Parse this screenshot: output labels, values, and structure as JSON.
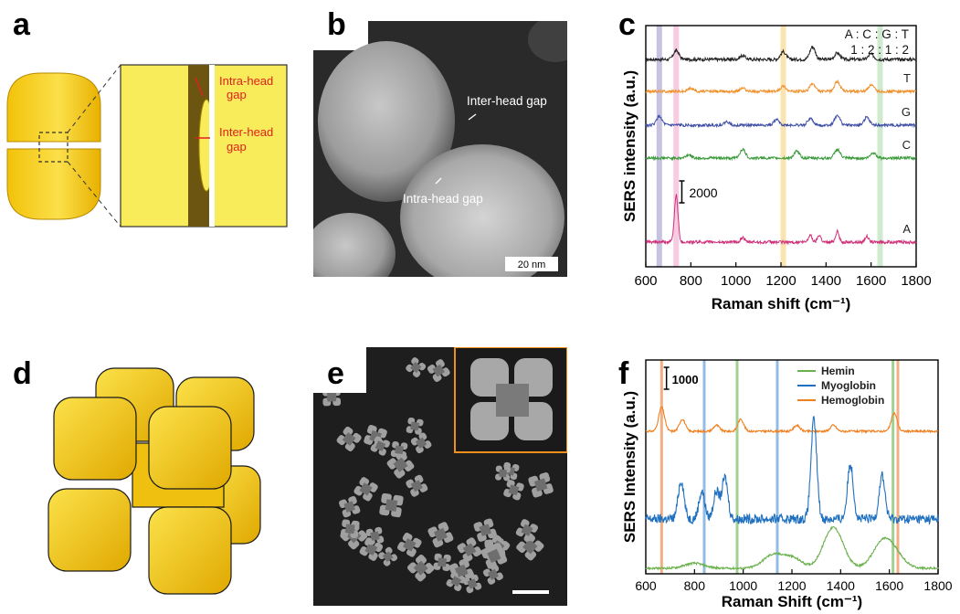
{
  "panels": {
    "a": {
      "letter": "a",
      "labels": {
        "intra": [
          "Intra-head",
          "gap"
        ],
        "inter": [
          "Inter-head",
          "gap"
        ]
      }
    },
    "b": {
      "letter": "b",
      "labels": {
        "inter": "Inter-head gap",
        "intra": "Intra-head gap",
        "scale": "20 nm"
      }
    },
    "c": {
      "letter": "c"
    },
    "d": {
      "letter": "d"
    },
    "e": {
      "letter": "e"
    },
    "f": {
      "letter": "f"
    }
  },
  "chart_data": [
    {
      "id": "c",
      "type": "line",
      "xlabel": "Raman shift (cm⁻¹)",
      "ylabel": "SERS intensity (a.u.)",
      "xlim": [
        600,
        1800
      ],
      "xticks": [
        600,
        800,
        1000,
        1200,
        1400,
        1600,
        1800
      ],
      "ratio_text": [
        "A : C : G : T",
        "1 : 2 : 1 : 2"
      ],
      "scale_bar": "2000",
      "highlight_bands": [
        {
          "x": 660,
          "color": "#9a90c8"
        },
        {
          "x": 735,
          "color": "#f0a0c8"
        },
        {
          "x": 1210,
          "color": "#f5d070"
        },
        {
          "x": 1640,
          "color": "#a8d8a8"
        }
      ],
      "series": [
        {
          "name": "",
          "color": "#222222",
          "peaks": [
            [
              735,
              0.7
            ],
            [
              1030,
              0.3
            ],
            [
              1210,
              0.6
            ],
            [
              1340,
              1.0
            ],
            [
              1450,
              0.5
            ],
            [
              1600,
              0.4
            ]
          ]
        },
        {
          "name": "T",
          "color": "#f0902a",
          "peaks": [
            [
              800,
              0.3
            ],
            [
              1030,
              0.3
            ],
            [
              1210,
              0.5
            ],
            [
              1340,
              0.7
            ],
            [
              1450,
              0.9
            ],
            [
              1600,
              0.6
            ]
          ]
        },
        {
          "name": "G",
          "color": "#4050a8",
          "peaks": [
            [
              660,
              0.8
            ],
            [
              960,
              0.3
            ],
            [
              1180,
              0.5
            ],
            [
              1330,
              0.6
            ],
            [
              1450,
              0.9
            ],
            [
              1580,
              0.7
            ]
          ]
        },
        {
          "name": "C",
          "color": "#3a9a3a",
          "peaks": [
            [
              790,
              0.3
            ],
            [
              1030,
              0.8
            ],
            [
              1270,
              0.6
            ],
            [
              1450,
              0.8
            ],
            [
              1610,
              0.5
            ]
          ]
        },
        {
          "name": "A",
          "color": "#d0307a",
          "peaks": [
            [
              735,
              4.0
            ],
            [
              1030,
              0.4
            ],
            [
              1330,
              0.6
            ],
            [
              1370,
              0.6
            ],
            [
              1450,
              0.9
            ],
            [
              1580,
              0.5
            ]
          ]
        }
      ]
    },
    {
      "id": "f",
      "type": "line",
      "xlabel": "Raman Shift (cm⁻¹)",
      "ylabel": "SERS Intensity (a.u.)",
      "xlim": [
        600,
        1800
      ],
      "xticks": [
        600,
        800,
        1000,
        1200,
        1400,
        1600,
        1800
      ],
      "scale_bar": "1000",
      "highlight_lines": [
        {
          "x": 665,
          "color": "#f0a070"
        },
        {
          "x": 840,
          "color": "#80b0e0"
        },
        {
          "x": 975,
          "color": "#90c880"
        },
        {
          "x": 1140,
          "color": "#80b0e0"
        },
        {
          "x": 1615,
          "color": "#90c880"
        },
        {
          "x": 1635,
          "color": "#f0a070"
        }
      ],
      "legend": [
        "Hemin",
        "Myoglobin",
        "Hemoglobin"
      ],
      "series": [
        {
          "name": "Hemoglobin",
          "color": "#f07f20",
          "peaks": [
            [
              665,
              1.2
            ],
            [
              750,
              0.6
            ],
            [
              890,
              0.3
            ],
            [
              990,
              0.6
            ],
            [
              1220,
              0.3
            ],
            [
              1370,
              0.3
            ],
            [
              1620,
              0.9
            ]
          ]
        },
        {
          "name": "Myoglobin",
          "color": "#1f70c0",
          "peaks": [
            [
              745,
              1.4
            ],
            [
              830,
              1.0
            ],
            [
              890,
              1.0
            ],
            [
              925,
              1.5
            ],
            [
              1290,
              3.6
            ],
            [
              1440,
              2.0
            ],
            [
              1570,
              1.6
            ]
          ]
        },
        {
          "name": "Hemin",
          "color": "#6ab04c",
          "peaks": [
            [
              800,
              0.2
            ],
            [
              1120,
              0.5
            ],
            [
              1200,
              0.4
            ],
            [
              1370,
              1.6
            ],
            [
              1570,
              0.9
            ],
            [
              1620,
              0.5
            ]
          ]
        }
      ]
    }
  ]
}
